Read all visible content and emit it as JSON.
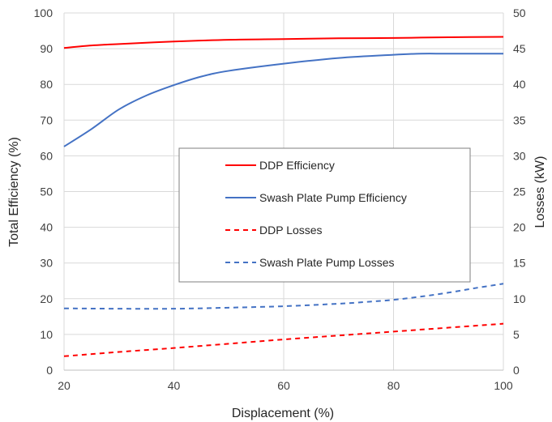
{
  "chart_data": {
    "type": "line",
    "title": "",
    "xlabel": "Displacement (%)",
    "ylabel": "Total Efficiency (%)",
    "y2label": "Losses (kW)",
    "xlim": [
      20,
      100
    ],
    "ylim": [
      0,
      100
    ],
    "y2lim": [
      0,
      50
    ],
    "x_ticks": [
      "20",
      "40",
      "60",
      "80",
      "100"
    ],
    "y_ticks": [
      "0",
      "10",
      "20",
      "30",
      "40",
      "50",
      "60",
      "70",
      "80",
      "90",
      "100"
    ],
    "y2_ticks": [
      "0",
      "5",
      "10",
      "15",
      "20",
      "25",
      "30",
      "35",
      "40",
      "45",
      "50"
    ],
    "grid": true,
    "legend_position": "center",
    "series": [
      {
        "name": "DDP Efficiency",
        "axis": "left",
        "color": "#ff0000",
        "dash": "solid",
        "x": [
          20,
          25,
          30,
          40,
          50,
          60,
          70,
          80,
          90,
          100
        ],
        "y": [
          90.2,
          90.9,
          91.3,
          92.0,
          92.5,
          92.7,
          92.9,
          93.0,
          93.2,
          93.3
        ]
      },
      {
        "name": "Swash Plate Pump Efficiency",
        "axis": "left",
        "color": "#4472c4",
        "dash": "solid",
        "x": [
          20,
          25,
          30,
          35,
          40,
          45,
          50,
          60,
          70,
          80,
          85,
          90,
          100
        ],
        "y": [
          62.6,
          67.5,
          73.0,
          76.9,
          79.8,
          82.2,
          83.8,
          85.8,
          87.4,
          88.3,
          88.6,
          88.6,
          88.6
        ]
      },
      {
        "name": "DDP Losses",
        "axis": "right",
        "color": "#ff0000",
        "dash": "dashed",
        "x": [
          20,
          30,
          40,
          50,
          60,
          70,
          80,
          90,
          100
        ],
        "y": [
          1.95,
          2.55,
          3.1,
          3.7,
          4.3,
          4.85,
          5.4,
          5.95,
          6.5
        ]
      },
      {
        "name": "Swash Plate Pump Losses",
        "axis": "right",
        "color": "#4472c4",
        "dash": "dashed",
        "x": [
          20,
          30,
          40,
          50,
          60,
          70,
          75,
          80,
          85,
          90,
          95,
          100
        ],
        "y": [
          8.65,
          8.6,
          8.6,
          8.75,
          8.95,
          9.3,
          9.55,
          9.85,
          10.3,
          10.85,
          11.5,
          12.1
        ]
      }
    ]
  }
}
